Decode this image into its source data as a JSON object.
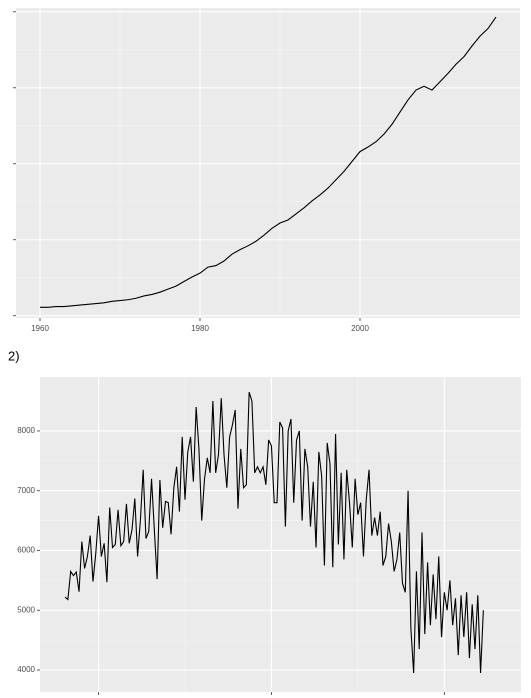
{
  "chart_data": [
    {
      "type": "line",
      "color": "#000000",
      "grid": true,
      "ytick_labels": false,
      "x": [
        1960,
        1961,
        1962,
        1963,
        1964,
        1965,
        1966,
        1967,
        1968,
        1969,
        1970,
        1971,
        1972,
        1973,
        1974,
        1975,
        1976,
        1977,
        1978,
        1979,
        1980,
        1981,
        1982,
        1983,
        1984,
        1985,
        1986,
        1987,
        1988,
        1989,
        1990,
        1991,
        1992,
        1993,
        1994,
        1995,
        1996,
        1997,
        1998,
        1999,
        2000,
        2001,
        2002,
        2003,
        2004,
        2005,
        2006,
        2007,
        2008,
        2009,
        2010,
        2011,
        2012,
        2013,
        2014,
        2015,
        2016,
        2017
      ],
      "values": [
        0.11,
        0.11,
        0.12,
        0.12,
        0.13,
        0.14,
        0.15,
        0.16,
        0.17,
        0.19,
        0.2,
        0.21,
        0.23,
        0.26,
        0.28,
        0.31,
        0.35,
        0.39,
        0.45,
        0.51,
        0.56,
        0.64,
        0.66,
        0.72,
        0.81,
        0.87,
        0.92,
        0.98,
        1.06,
        1.15,
        1.22,
        1.26,
        1.34,
        1.42,
        1.51,
        1.59,
        1.68,
        1.79,
        1.9,
        2.03,
        2.16,
        2.22,
        2.29,
        2.39,
        2.52,
        2.68,
        2.84,
        2.97,
        3.02,
        2.97,
        3.08,
        3.19,
        3.31,
        3.41,
        3.55,
        3.68,
        3.78,
        3.93
      ],
      "xlim": [
        1957,
        2020
      ],
      "xticks": [
        1960,
        1980,
        2000
      ],
      "ylim": [
        -0.03,
        4.05
      ],
      "yticks": [
        0,
        1,
        2,
        3,
        4
      ]
    },
    {
      "type": "line",
      "panel_label": "2)",
      "color": "#000000",
      "grid": true,
      "xtick_labels": false,
      "x": [
        0,
        1,
        2,
        3,
        4,
        5,
        6,
        7,
        8,
        9,
        10,
        11,
        12,
        13,
        14,
        15,
        16,
        17,
        18,
        19,
        20,
        21,
        22,
        23,
        24,
        25,
        26,
        27,
        28,
        29,
        30,
        31,
        32,
        33,
        34,
        35,
        36,
        37,
        38,
        39,
        40,
        41,
        42,
        43,
        44,
        45,
        46,
        47,
        48,
        49,
        50,
        51,
        52,
        53,
        54,
        55,
        56,
        57,
        58,
        59,
        60,
        61,
        62,
        63,
        64,
        65,
        66,
        67,
        68,
        69,
        70,
        71,
        72,
        73,
        74,
        75,
        76,
        77,
        78,
        79,
        80,
        81,
        82,
        83,
        84,
        85,
        86,
        87,
        88,
        89,
        90,
        91,
        92,
        93,
        94,
        95,
        96,
        97,
        98,
        99,
        100,
        101,
        102,
        103,
        104,
        105,
        106,
        107,
        108,
        109,
        110,
        111,
        112,
        113,
        114,
        115,
        116,
        117,
        118,
        119,
        120,
        121,
        122,
        123,
        124,
        125,
        126,
        127,
        128,
        129,
        130,
        131,
        132,
        133,
        134,
        135,
        136,
        137,
        138,
        139,
        140,
        141,
        142,
        143,
        144,
        145,
        146,
        147,
        148,
        149,
        150
      ],
      "values": [
        5220,
        5180,
        5650,
        5580,
        5640,
        5310,
        6150,
        5700,
        5900,
        6250,
        5480,
        5950,
        6580,
        5900,
        6120,
        5470,
        6720,
        6050,
        6100,
        6680,
        6080,
        6150,
        6780,
        6120,
        6350,
        6870,
        5900,
        6500,
        7350,
        6200,
        6320,
        7200,
        6350,
        5520,
        7180,
        6380,
        6820,
        6800,
        6270,
        7050,
        7400,
        6650,
        7900,
        6850,
        7650,
        7900,
        7150,
        8400,
        7700,
        6500,
        7200,
        7550,
        7300,
        8500,
        7300,
        7600,
        8550,
        7600,
        7050,
        7900,
        8100,
        8350,
        6700,
        7700,
        7050,
        7100,
        8650,
        8500,
        7300,
        7400,
        7300,
        7400,
        7100,
        7850,
        7750,
        6800,
        6800,
        8150,
        8050,
        6400,
        8000,
        8200,
        6800,
        7850,
        8000,
        6500,
        7700,
        7400,
        6400,
        7150,
        6050,
        7650,
        7250,
        5750,
        7800,
        7450,
        5720,
        7950,
        6100,
        7300,
        5850,
        7350,
        6800,
        6050,
        7200,
        6600,
        6800,
        5900,
        6850,
        7350,
        6250,
        6550,
        6250,
        6650,
        5750,
        5900,
        6450,
        6150,
        5650,
        5850,
        6300,
        5450,
        5300,
        7000,
        4700,
        3950,
        5650,
        4350,
        6300,
        4600,
        5800,
        4750,
        5600,
        4850,
        5900,
        4550,
        5300,
        5000,
        5500,
        4750,
        5200,
        4250,
        5250,
        4550,
        5300,
        4200,
        5100,
        4350,
        5250,
        3950,
        5000
      ],
      "xlim": [
        -9,
        163.5
      ],
      "xticks": [
        12,
        74,
        136
      ],
      "ylim": [
        3632,
        8903
      ],
      "yticks": [
        4000,
        5000,
        6000,
        7000,
        8000
      ]
    }
  ]
}
